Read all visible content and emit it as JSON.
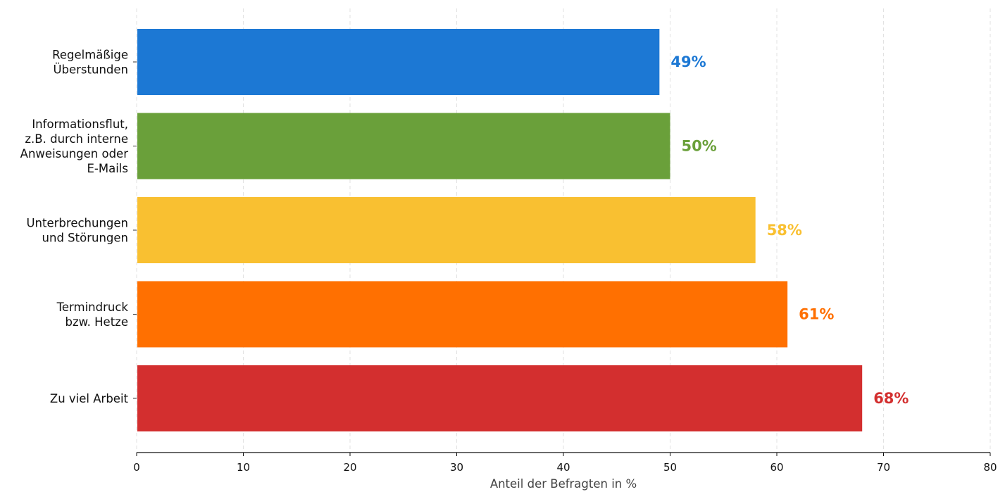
{
  "chart_data": {
    "type": "bar",
    "orientation": "horizontal",
    "categories": [
      [
        "Regelmäßige",
        "Überstunden"
      ],
      [
        "Informationsflut,",
        "z.B. durch interne",
        "Anweisungen oder",
        "E-Mails"
      ],
      [
        "Unterbrechungen",
        "und Störungen"
      ],
      [
        "Termindruck",
        "bzw. Hetze"
      ],
      [
        "Zu viel Arbeit"
      ]
    ],
    "values": [
      49,
      50,
      58,
      61,
      68
    ],
    "data_labels": [
      "49%",
      "50%",
      "58%",
      "61%",
      "68%"
    ],
    "colors": [
      "#1c78d4",
      "#6aa03a",
      "#f9c031",
      "#ff7001",
      "#d32f2f"
    ],
    "xlabel": "Anteil der Befragten in %",
    "xlim": [
      0,
      80
    ],
    "xticks": [
      0,
      10,
      20,
      30,
      40,
      50,
      60,
      70,
      80
    ],
    "grid": "vertical-dashed",
    "legend": "none"
  }
}
